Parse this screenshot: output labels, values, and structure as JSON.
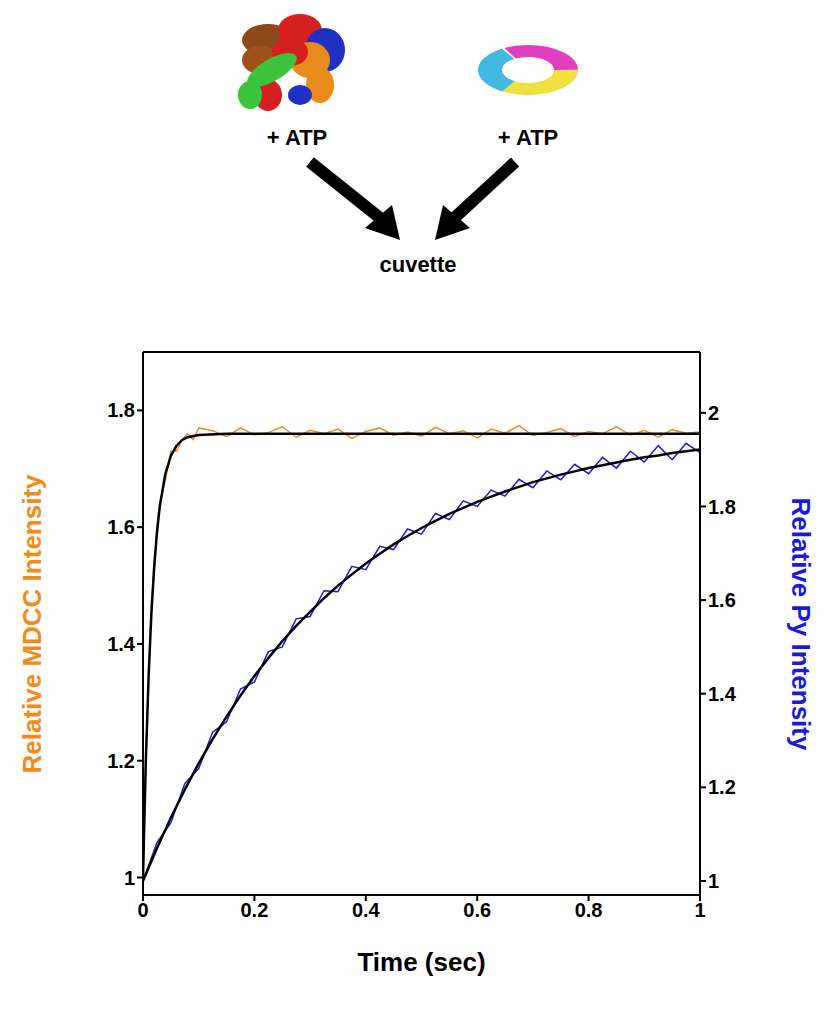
{
  "chart_data": {
    "type": "line",
    "annotations": [
      "+ ATP",
      "+ ATP",
      "cuvette"
    ],
    "xlabel": "Time (sec)",
    "ylabel": "Relative MDCC Intensity",
    "y2label": "Relative Py Intensity",
    "xlim": [
      0,
      1
    ],
    "xticks": [
      0,
      0.2,
      0.4,
      0.6,
      0.8,
      1
    ],
    "ylim": [
      0.97,
      1.9
    ],
    "yticks": [
      1,
      1.2,
      1.4,
      1.6,
      1.8
    ],
    "y2lim": [
      0.97,
      2.13
    ],
    "y2ticks": [
      1,
      1.2,
      1.4,
      1.6,
      1.8,
      2
    ],
    "series": [
      {
        "color": "#f28a1c",
        "axis": "y",
        "x": [
          0,
          0.005,
          0.01,
          0.015,
          0.02,
          0.025,
          0.03,
          0.04,
          0.05,
          0.06,
          0.07,
          0.08,
          0.09,
          0.1,
          0.125,
          0.15,
          0.175,
          0.2,
          0.225,
          0.25,
          0.275,
          0.3,
          0.325,
          0.35,
          0.375,
          0.4,
          0.425,
          0.45,
          0.475,
          0.5,
          0.525,
          0.55,
          0.575,
          0.6,
          0.625,
          0.65,
          0.675,
          0.7,
          0.725,
          0.75,
          0.775,
          0.8,
          0.825,
          0.85,
          0.875,
          0.9,
          0.925,
          0.95,
          0.975,
          1
        ],
        "values": [
          0.98,
          1.21,
          1.33,
          1.47,
          1.52,
          1.6,
          1.64,
          1.68,
          1.73,
          1.73,
          1.75,
          1.76,
          1.75,
          1.77,
          1.765,
          1.755,
          1.77,
          1.758,
          1.762,
          1.772,
          1.754,
          1.766,
          1.76,
          1.768,
          1.752,
          1.764,
          1.77,
          1.757,
          1.763,
          1.756,
          1.771,
          1.76,
          1.765,
          1.753,
          1.768,
          1.761,
          1.774,
          1.757,
          1.762,
          1.769,
          1.755,
          1.764,
          1.76,
          1.772,
          1.758,
          1.766,
          1.754,
          1.767,
          1.761,
          1.763
        ]
      },
      {
        "color": "#000000",
        "axis": "y",
        "x": [
          0,
          0.005,
          0.01,
          0.015,
          0.02,
          0.025,
          0.03,
          0.04,
          0.05,
          0.06,
          0.07,
          0.08,
          0.1,
          0.15,
          0.2,
          1
        ],
        "values": [
          1,
          1.197,
          1.343,
          1.451,
          1.531,
          1.59,
          1.635,
          1.691,
          1.722,
          1.739,
          1.749,
          1.754,
          1.758,
          1.76,
          1.76,
          1.76
        ]
      },
      {
        "color": "#1a1adb",
        "axis": "y2",
        "x": [
          0,
          0.025,
          0.05,
          0.075,
          0.1,
          0.125,
          0.15,
          0.175,
          0.2,
          0.225,
          0.25,
          0.275,
          0.3,
          0.325,
          0.35,
          0.375,
          0.4,
          0.425,
          0.45,
          0.475,
          0.5,
          0.525,
          0.55,
          0.575,
          0.6,
          0.625,
          0.65,
          0.675,
          0.7,
          0.725,
          0.75,
          0.775,
          0.8,
          0.825,
          0.85,
          0.875,
          0.9,
          0.925,
          0.95,
          0.975,
          1
        ],
        "values": [
          1.0,
          1.082,
          1.124,
          1.208,
          1.24,
          1.318,
          1.34,
          1.41,
          1.425,
          1.49,
          1.5,
          1.56,
          1.565,
          1.62,
          1.618,
          1.672,
          1.665,
          1.715,
          1.708,
          1.752,
          1.741,
          1.785,
          1.772,
          1.812,
          1.8,
          1.835,
          1.822,
          1.858,
          1.84,
          1.876,
          1.857,
          1.89,
          1.87,
          1.905,
          1.882,
          1.918,
          1.895,
          1.93,
          1.9,
          1.935,
          1.915
        ]
      },
      {
        "color": "#000000",
        "axis": "y2",
        "x": [
          0,
          0.025,
          0.05,
          0.075,
          0.1,
          0.125,
          0.15,
          0.175,
          0.2,
          0.225,
          0.25,
          0.275,
          0.3,
          0.325,
          0.35,
          0.375,
          0.4,
          0.425,
          0.45,
          0.475,
          0.5,
          0.525,
          0.55,
          0.575,
          0.6,
          0.625,
          0.65,
          0.675,
          0.7,
          0.725,
          0.75,
          0.775,
          0.8,
          0.825,
          0.85,
          0.875,
          0.9,
          0.925,
          0.95,
          0.975,
          1
        ],
        "values": [
          1.0,
          1.07,
          1.135,
          1.195,
          1.251,
          1.303,
          1.351,
          1.396,
          1.438,
          1.476,
          1.512,
          1.545,
          1.575,
          1.604,
          1.631,
          1.655,
          1.678,
          1.699,
          1.719,
          1.737,
          1.754,
          1.769,
          1.784,
          1.797,
          1.81,
          1.821,
          1.832,
          1.842,
          1.852,
          1.86,
          1.868,
          1.875,
          1.882,
          1.888,
          1.894,
          1.9,
          1.905,
          1.909,
          1.914,
          1.918,
          1.922
        ]
      }
    ]
  }
}
